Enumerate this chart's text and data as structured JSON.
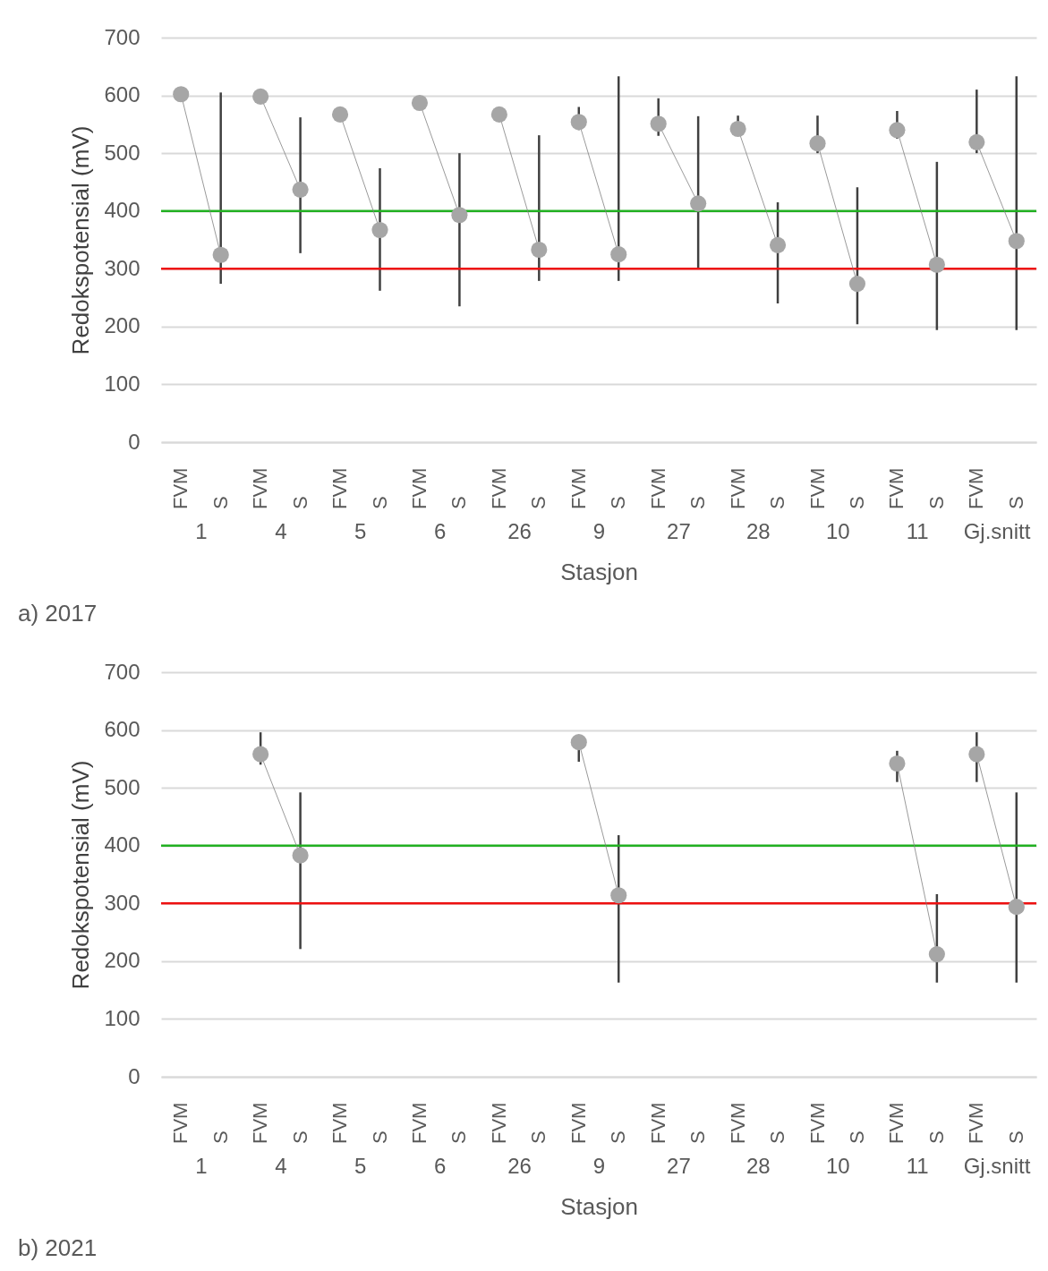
{
  "chart_data": [
    {
      "type": "scatter",
      "xlabel": "Stasjon",
      "ylabel": "Redokspotensial (mV)",
      "categories": [
        "1",
        "4",
        "5",
        "6",
        "26",
        "9",
        "27",
        "28",
        "10",
        "11",
        "Gj.snitt"
      ],
      "series": [
        {
          "name": "FVM",
          "color": "#a6a6a6",
          "values": [
            602,
            598,
            567,
            587,
            567,
            554,
            551,
            542,
            517,
            540,
            519
          ],
          "errors": [
            null,
            null,
            null,
            null,
            null,
            [
              540,
              580
            ],
            [
              530,
              595
            ],
            [
              530,
              565
            ],
            [
              500,
              565
            ],
            [
              525,
              573
            ],
            [
              500,
              610
            ]
          ]
        },
        {
          "name": "S",
          "color": "#a6a6a6",
          "values": [
            324,
            437,
            367,
            393,
            333,
            325,
            413,
            341,
            274,
            307,
            348
          ],
          "errors": [
            [
              274,
              605
            ],
            [
              327,
              562
            ],
            [
              262,
              474
            ],
            [
              235,
              500
            ],
            [
              279,
              531
            ],
            [
              279,
              633
            ],
            [
              302,
              564
            ],
            [
              240,
              415
            ],
            [
              204,
              441
            ],
            [
              194,
              485
            ],
            [
              194,
              633
            ]
          ]
        }
      ],
      "ylim": [
        0,
        700
      ],
      "yticks": [
        0,
        100,
        200,
        300,
        400,
        500,
        600,
        700
      ],
      "grid": "y",
      "marker": "circle",
      "line_style": "solid",
      "ref_lines": [
        {
          "axis": "y",
          "value": 400,
          "color": "#22b022"
        },
        {
          "axis": "y",
          "value": 300,
          "color": "#ee1111"
        }
      ],
      "annotations": [
        "a) 2017"
      ]
    },
    {
      "type": "scatter",
      "xlabel": "Stasjon",
      "ylabel": "Redokspotensial (mV)",
      "categories": [
        "1",
        "4",
        "5",
        "6",
        "26",
        "9",
        "27",
        "28",
        "10",
        "11",
        "Gj.snitt"
      ],
      "series": [
        {
          "name": "FVM",
          "color": "#a6a6a6",
          "values": [
            null,
            558,
            null,
            null,
            null,
            579,
            null,
            null,
            null,
            542,
            558
          ],
          "errors": [
            null,
            [
              540,
              596
            ],
            null,
            null,
            null,
            [
              545,
              590
            ],
            null,
            null,
            null,
            [
              510,
              564
            ],
            [
              510,
              596
            ]
          ]
        },
        {
          "name": "S",
          "color": "#a6a6a6",
          "values": [
            null,
            383,
            null,
            null,
            null,
            314,
            null,
            null,
            null,
            212,
            294
          ],
          "errors": [
            null,
            [
              221,
              492
            ],
            null,
            null,
            null,
            [
              163,
              418
            ],
            null,
            null,
            null,
            [
              163,
              316
            ],
            [
              163,
              492
            ]
          ]
        }
      ],
      "ylim": [
        0,
        700
      ],
      "yticks": [
        0,
        100,
        200,
        300,
        400,
        500,
        600,
        700
      ],
      "grid": "y",
      "marker": "circle",
      "line_style": "solid",
      "ref_lines": [
        {
          "axis": "y",
          "value": 400,
          "color": "#22b022"
        },
        {
          "axis": "y",
          "value": 300,
          "color": "#ee1111"
        }
      ],
      "annotations": [
        "b) 2021"
      ]
    }
  ]
}
